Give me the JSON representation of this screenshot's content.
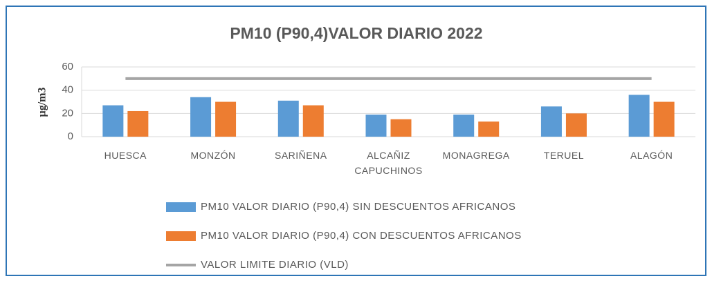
{
  "chart_data": {
    "type": "bar",
    "title": "PM10  (P90,4)VALOR DIARIO 2022",
    "y_label": "µg/m3",
    "categories": [
      "HUESCA",
      "MONZÓN",
      "SARIÑENA",
      "ALCAÑIZ CAPUCHINOS",
      "MONAGREGA",
      "TERUEL",
      "ALAGÓN"
    ],
    "series": [
      {
        "name": "PM10 VALOR DIARIO (P90,4) SIN DESCUENTOS AFRICANOS",
        "type": "bar",
        "color": "#5b9bd5",
        "values": [
          27,
          34,
          31,
          19,
          19,
          26,
          36
        ]
      },
      {
        "name": "PM10 VALOR DIARIO (P90,4) CON DESCUENTOS AFRICANOS",
        "type": "bar",
        "color": "#ed7d31",
        "values": [
          22,
          30,
          27,
          15,
          13,
          20,
          30
        ]
      },
      {
        "name": "VALOR LIMITE DIARIO (VLD)",
        "type": "line",
        "color": "#a5a5a5",
        "values": [
          50,
          50,
          50,
          50,
          50,
          50,
          50
        ]
      }
    ],
    "ylim": [
      0,
      60
    ],
    "yticks": [
      0,
      20,
      40,
      60
    ],
    "grid": true,
    "legend": "bottom"
  }
}
